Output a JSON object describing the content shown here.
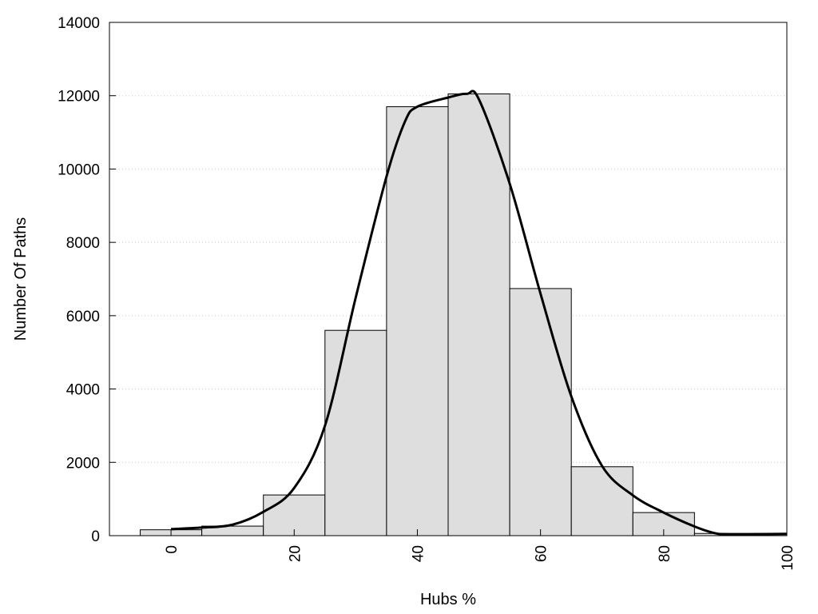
{
  "chart_data": {
    "type": "bar",
    "subtype": "histogram with smoothed density curve",
    "xlabel": "Hubs %",
    "ylabel": "Number Of Paths",
    "xlim": [
      -10,
      100
    ],
    "ylim": [
      0,
      14000
    ],
    "xticks": [
      0,
      20,
      40,
      60,
      80,
      100
    ],
    "yticks": [
      0,
      2000,
      4000,
      6000,
      8000,
      10000,
      12000,
      14000
    ],
    "grid": "horizontal dotted",
    "legend": "none",
    "colors": {
      "bar_fill": "#dedede",
      "bar_edge": "#000000",
      "curve": "#000000",
      "grid": "#c8c8c8"
    },
    "bins": [
      {
        "x_start": -5,
        "x_end": 5,
        "value": 160
      },
      {
        "x_start": 5,
        "x_end": 15,
        "value": 260
      },
      {
        "x_start": 15,
        "x_end": 25,
        "value": 1110
      },
      {
        "x_start": 25,
        "x_end": 35,
        "value": 5600
      },
      {
        "x_start": 35,
        "x_end": 45,
        "value": 11700
      },
      {
        "x_start": 45,
        "x_end": 55,
        "value": 12050
      },
      {
        "x_start": 55,
        "x_end": 65,
        "value": 6740
      },
      {
        "x_start": 65,
        "x_end": 75,
        "value": 1880
      },
      {
        "x_start": 75,
        "x_end": 85,
        "value": 630
      },
      {
        "x_start": 85,
        "x_end": 95,
        "value": 60
      },
      {
        "x_start": 95,
        "x_end": 105,
        "value": 60
      }
    ],
    "curve": {
      "x": [
        0,
        5,
        10,
        15,
        20,
        25,
        30,
        35,
        38,
        40,
        45,
        48,
        50,
        55,
        60,
        65,
        70,
        75,
        80,
        85,
        88,
        90,
        95,
        100
      ],
      "y": [
        180,
        220,
        300,
        650,
        1300,
        3000,
        6500,
        9800,
        11300,
        11700,
        11950,
        12050,
        11900,
        9600,
        6600,
        3800,
        1900,
        1100,
        630,
        250,
        80,
        40,
        40,
        50
      ]
    }
  }
}
